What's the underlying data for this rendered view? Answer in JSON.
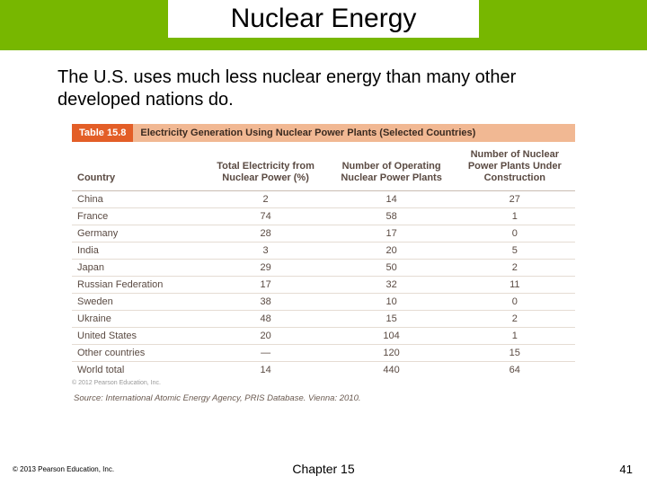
{
  "slide": {
    "title": "Nuclear Energy",
    "body": "The U.S. uses much less nuclear energy than many other developed nations do."
  },
  "table": {
    "label": "Table 15.8",
    "caption": "Electricity Generation Using Nuclear Power Plants (Selected Countries)",
    "columns": {
      "c0": "Country",
      "c1": "Total Electricity from Nuclear Power (%)",
      "c2": "Number of Operating Nuclear Power Plants",
      "c3": "Number of Nuclear Power Plants Under Construction"
    },
    "rows": [
      {
        "c0": "China",
        "c1": "2",
        "c2": "14",
        "c3": "27"
      },
      {
        "c0": "France",
        "c1": "74",
        "c2": "58",
        "c3": "1"
      },
      {
        "c0": "Germany",
        "c1": "28",
        "c2": "17",
        "c3": "0"
      },
      {
        "c0": "India",
        "c1": "3",
        "c2": "20",
        "c3": "5"
      },
      {
        "c0": "Japan",
        "c1": "29",
        "c2": "50",
        "c3": "2"
      },
      {
        "c0": "Russian Federation",
        "c1": "17",
        "c2": "32",
        "c3": "11"
      },
      {
        "c0": "Sweden",
        "c1": "38",
        "c2": "10",
        "c3": "0"
      },
      {
        "c0": "Ukraine",
        "c1": "48",
        "c2": "15",
        "c3": "2"
      },
      {
        "c0": "United States",
        "c1": "20",
        "c2": "104",
        "c3": "1"
      },
      {
        "c0": "Other countries",
        "c1": "—",
        "c2": "120",
        "c3": "15"
      },
      {
        "c0": "World total",
        "c1": "14",
        "c2": "440",
        "c3": "64"
      }
    ],
    "tiny_copyright": "© 2012 Pearson Education, Inc.",
    "source": "Source: International Atomic Energy Agency, PRIS Database. Vienna: 2010."
  },
  "footer": {
    "copyright": "© 2013 Pearson Education, Inc.",
    "chapter": "Chapter 15",
    "page": "41"
  }
}
